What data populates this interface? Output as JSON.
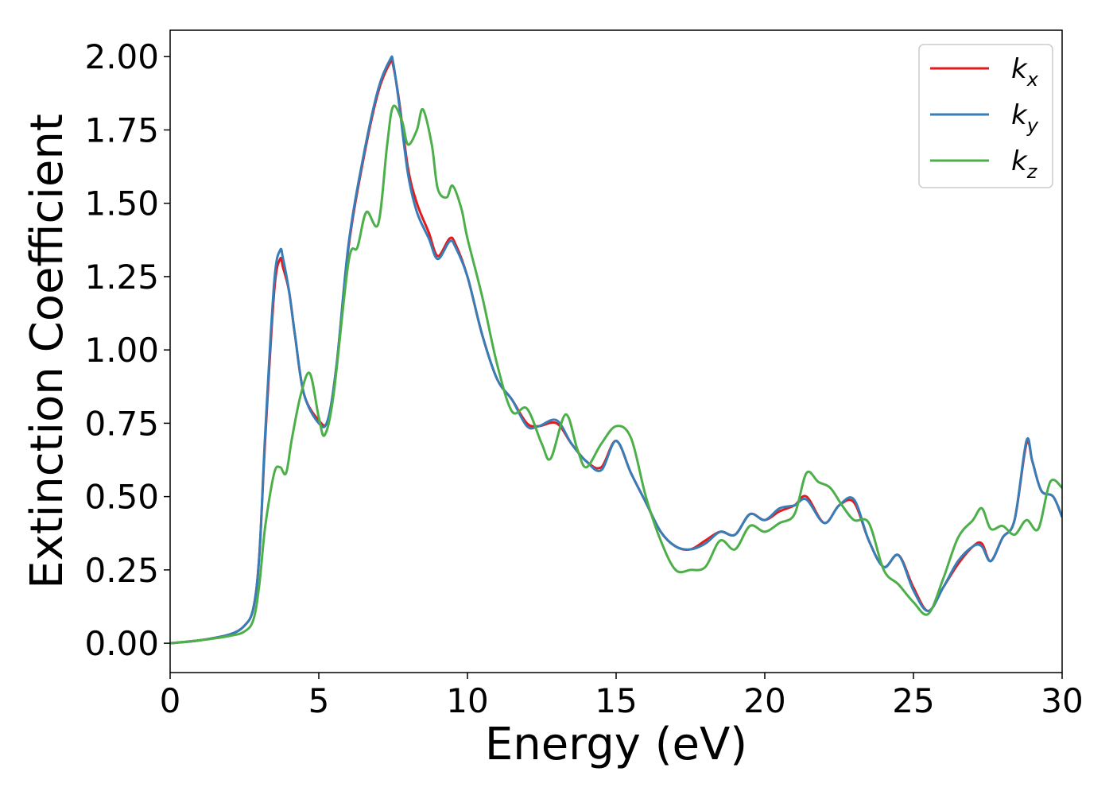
{
  "chart_data": {
    "type": "line",
    "xlabel": "Energy (eV)",
    "ylabel": "Extinction Coefficient",
    "xlim": [
      0,
      30
    ],
    "ylim": [
      -0.1,
      2.09
    ],
    "x_ticks": [
      "0",
      "5",
      "10",
      "15",
      "20",
      "25",
      "30"
    ],
    "x_tick_values": [
      0,
      5,
      10,
      15,
      20,
      25,
      30
    ],
    "y_ticks": [
      "0.00",
      "0.25",
      "0.50",
      "0.75",
      "1.00",
      "1.25",
      "1.50",
      "1.75",
      "2.00"
    ],
    "y_tick_values": [
      0,
      0.25,
      0.5,
      0.75,
      1.0,
      1.25,
      1.5,
      1.75,
      2.0
    ],
    "grid": false,
    "legend_position": "top-right",
    "series": [
      {
        "name": "k_x",
        "label_main": "k",
        "label_sub": "x",
        "color": "#e41a1c",
        "x": [
          0,
          1,
          2,
          2.5,
          2.8,
          3.0,
          3.2,
          3.5,
          3.7,
          3.8,
          4.0,
          4.2,
          4.5,
          5.0,
          5.3,
          5.6,
          6.0,
          6.5,
          7.0,
          7.4,
          7.5,
          7.7,
          8.0,
          8.3,
          8.7,
          9.0,
          9.4,
          9.6,
          10.0,
          10.5,
          11.0,
          11.5,
          12.0,
          12.4,
          13.0,
          13.5,
          14.0,
          14.5,
          15.0,
          15.5,
          16.0,
          16.5,
          17.0,
          17.5,
          18.0,
          18.5,
          19.0,
          19.5,
          20.0,
          20.5,
          21.0,
          21.4,
          22.0,
          22.5,
          23.0,
          23.5,
          24.0,
          24.5,
          25.0,
          25.5,
          26.0,
          26.5,
          27.0,
          27.3,
          27.6,
          28.0,
          28.4,
          28.8,
          29.0,
          29.3,
          29.7,
          30.0
        ],
        "values": [
          0.0,
          0.01,
          0.03,
          0.06,
          0.12,
          0.3,
          0.7,
          1.2,
          1.31,
          1.28,
          1.2,
          1.05,
          0.85,
          0.76,
          0.76,
          0.95,
          1.35,
          1.65,
          1.88,
          1.98,
          1.97,
          1.85,
          1.62,
          1.5,
          1.4,
          1.32,
          1.38,
          1.36,
          1.25,
          1.05,
          0.9,
          0.83,
          0.75,
          0.74,
          0.75,
          0.68,
          0.62,
          0.6,
          0.69,
          0.58,
          0.48,
          0.38,
          0.33,
          0.32,
          0.35,
          0.38,
          0.37,
          0.44,
          0.42,
          0.45,
          0.47,
          0.5,
          0.41,
          0.47,
          0.48,
          0.35,
          0.26,
          0.3,
          0.19,
          0.11,
          0.19,
          0.27,
          0.33,
          0.34,
          0.28,
          0.36,
          0.42,
          0.68,
          0.62,
          0.52,
          0.5,
          0.43
        ]
      },
      {
        "name": "k_y",
        "label_main": "k",
        "label_sub": "y",
        "color": "#377eb8",
        "x": [
          0,
          1,
          2,
          2.5,
          2.8,
          3.0,
          3.2,
          3.5,
          3.7,
          3.8,
          4.0,
          4.2,
          4.5,
          5.0,
          5.3,
          5.6,
          6.0,
          6.5,
          7.0,
          7.4,
          7.5,
          7.7,
          8.0,
          8.3,
          8.7,
          9.0,
          9.4,
          9.6,
          10.0,
          10.5,
          11.0,
          11.5,
          12.0,
          12.4,
          13.0,
          13.5,
          14.0,
          14.5,
          15.0,
          15.5,
          16.0,
          16.5,
          17.0,
          17.5,
          18.0,
          18.5,
          19.0,
          19.5,
          20.0,
          20.5,
          21.0,
          21.4,
          22.0,
          22.5,
          23.0,
          23.5,
          24.0,
          24.5,
          25.0,
          25.5,
          26.0,
          26.5,
          27.0,
          27.3,
          27.6,
          28.0,
          28.4,
          28.8,
          29.0,
          29.3,
          29.7,
          30.0
        ],
        "values": [
          0.0,
          0.01,
          0.03,
          0.06,
          0.12,
          0.3,
          0.72,
          1.23,
          1.34,
          1.31,
          1.2,
          1.05,
          0.85,
          0.75,
          0.76,
          0.95,
          1.36,
          1.66,
          1.89,
          1.99,
          1.98,
          1.84,
          1.6,
          1.47,
          1.38,
          1.31,
          1.37,
          1.35,
          1.25,
          1.05,
          0.9,
          0.83,
          0.74,
          0.74,
          0.76,
          0.68,
          0.62,
          0.59,
          0.69,
          0.58,
          0.48,
          0.38,
          0.33,
          0.32,
          0.34,
          0.38,
          0.37,
          0.44,
          0.42,
          0.46,
          0.47,
          0.49,
          0.41,
          0.47,
          0.49,
          0.35,
          0.26,
          0.3,
          0.18,
          0.11,
          0.19,
          0.28,
          0.33,
          0.33,
          0.28,
          0.36,
          0.42,
          0.69,
          0.62,
          0.52,
          0.5,
          0.43
        ]
      },
      {
        "name": "k_z",
        "label_main": "k",
        "label_sub": "z",
        "color": "#4daf4a",
        "x": [
          0,
          1,
          2,
          2.5,
          2.8,
          3.0,
          3.2,
          3.5,
          3.7,
          3.9,
          4.1,
          4.4,
          4.7,
          5.0,
          5.2,
          5.5,
          6.0,
          6.3,
          6.6,
          7.0,
          7.3,
          7.5,
          7.8,
          8.0,
          8.3,
          8.5,
          8.8,
          9.0,
          9.3,
          9.5,
          9.8,
          10.0,
          10.5,
          11.0,
          11.5,
          12.0,
          12.5,
          12.8,
          13.3,
          13.7,
          14.0,
          14.5,
          15.0,
          15.5,
          16.0,
          16.5,
          17.0,
          17.5,
          18.0,
          18.5,
          19.0,
          19.5,
          20.0,
          20.5,
          21.0,
          21.4,
          21.8,
          22.2,
          22.6,
          23.0,
          23.5,
          24.0,
          24.5,
          25.0,
          25.5,
          26.0,
          26.5,
          27.0,
          27.3,
          27.6,
          28.0,
          28.4,
          28.8,
          29.2,
          29.6,
          30.0
        ],
        "values": [
          0.0,
          0.01,
          0.025,
          0.04,
          0.08,
          0.2,
          0.4,
          0.58,
          0.6,
          0.58,
          0.7,
          0.85,
          0.92,
          0.77,
          0.71,
          0.85,
          1.3,
          1.35,
          1.47,
          1.43,
          1.7,
          1.83,
          1.78,
          1.7,
          1.75,
          1.82,
          1.7,
          1.55,
          1.52,
          1.56,
          1.48,
          1.38,
          1.18,
          0.95,
          0.79,
          0.8,
          0.68,
          0.63,
          0.78,
          0.66,
          0.6,
          0.68,
          0.74,
          0.7,
          0.5,
          0.35,
          0.25,
          0.25,
          0.26,
          0.35,
          0.32,
          0.4,
          0.38,
          0.41,
          0.44,
          0.58,
          0.55,
          0.53,
          0.47,
          0.42,
          0.41,
          0.25,
          0.2,
          0.14,
          0.1,
          0.22,
          0.36,
          0.42,
          0.46,
          0.39,
          0.4,
          0.37,
          0.42,
          0.39,
          0.55,
          0.53
        ]
      }
    ]
  }
}
